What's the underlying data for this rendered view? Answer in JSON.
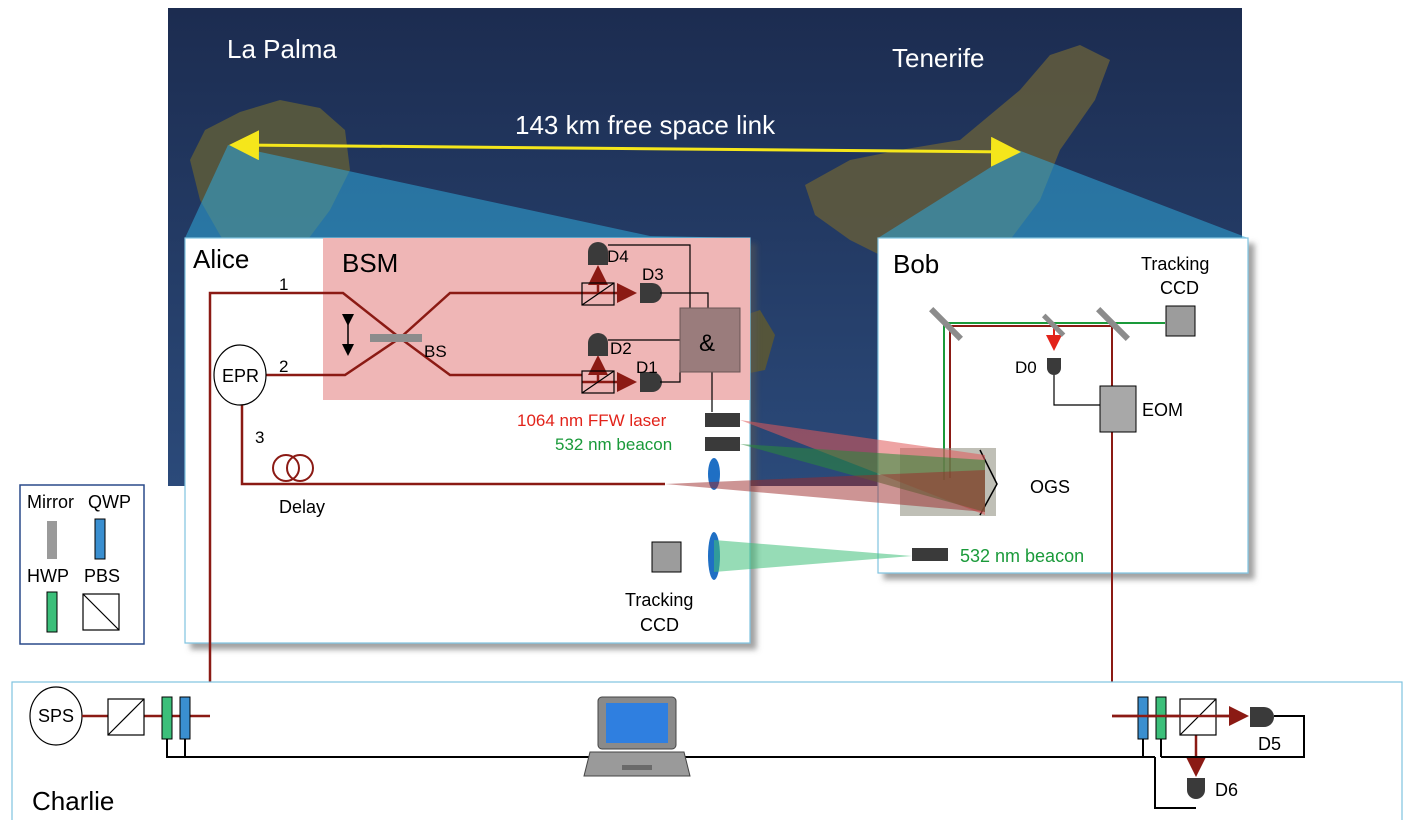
{
  "map": {
    "island_left": "La Palma",
    "island_right": "Tenerife",
    "link_label": "143 km free space link"
  },
  "alice": {
    "title": "Alice",
    "bsm": "BSM",
    "bs": "BS",
    "epr": "EPR",
    "and_gate": "&",
    "path1": "1",
    "path2": "2",
    "path3": "3",
    "delay": "Delay",
    "d1": "D1",
    "d2": "D2",
    "d3": "D3",
    "d4": "D4",
    "laser": "1064 nm FFW laser",
    "beacon": "532 nm beacon",
    "tracking_line1": "Tracking",
    "tracking_line2": "CCD"
  },
  "bob": {
    "title": "Bob",
    "tracking_line1": "Tracking",
    "tracking_line2": "CCD",
    "d0": "D0",
    "eom": "EOM",
    "ogs": "OGS",
    "beacon": "532 nm beacon"
  },
  "legend": {
    "mirror": "Mirror",
    "qwp": "QWP",
    "hwp": "HWP",
    "pbs": "PBS"
  },
  "charlie": {
    "title": "Charlie",
    "sps": "SPS",
    "d5": "D5",
    "d6": "D6"
  },
  "colors": {
    "fiber": "#8b1a14",
    "laser_red": "#e2231a",
    "beacon_green": "#1a9a3a",
    "bsm_fill": "#efb6b6",
    "panel_border": "#7fc3e0",
    "yellow_link": "#f5e61b",
    "qwp": "#3a8fd0",
    "hwp": "#3cbf7a"
  }
}
